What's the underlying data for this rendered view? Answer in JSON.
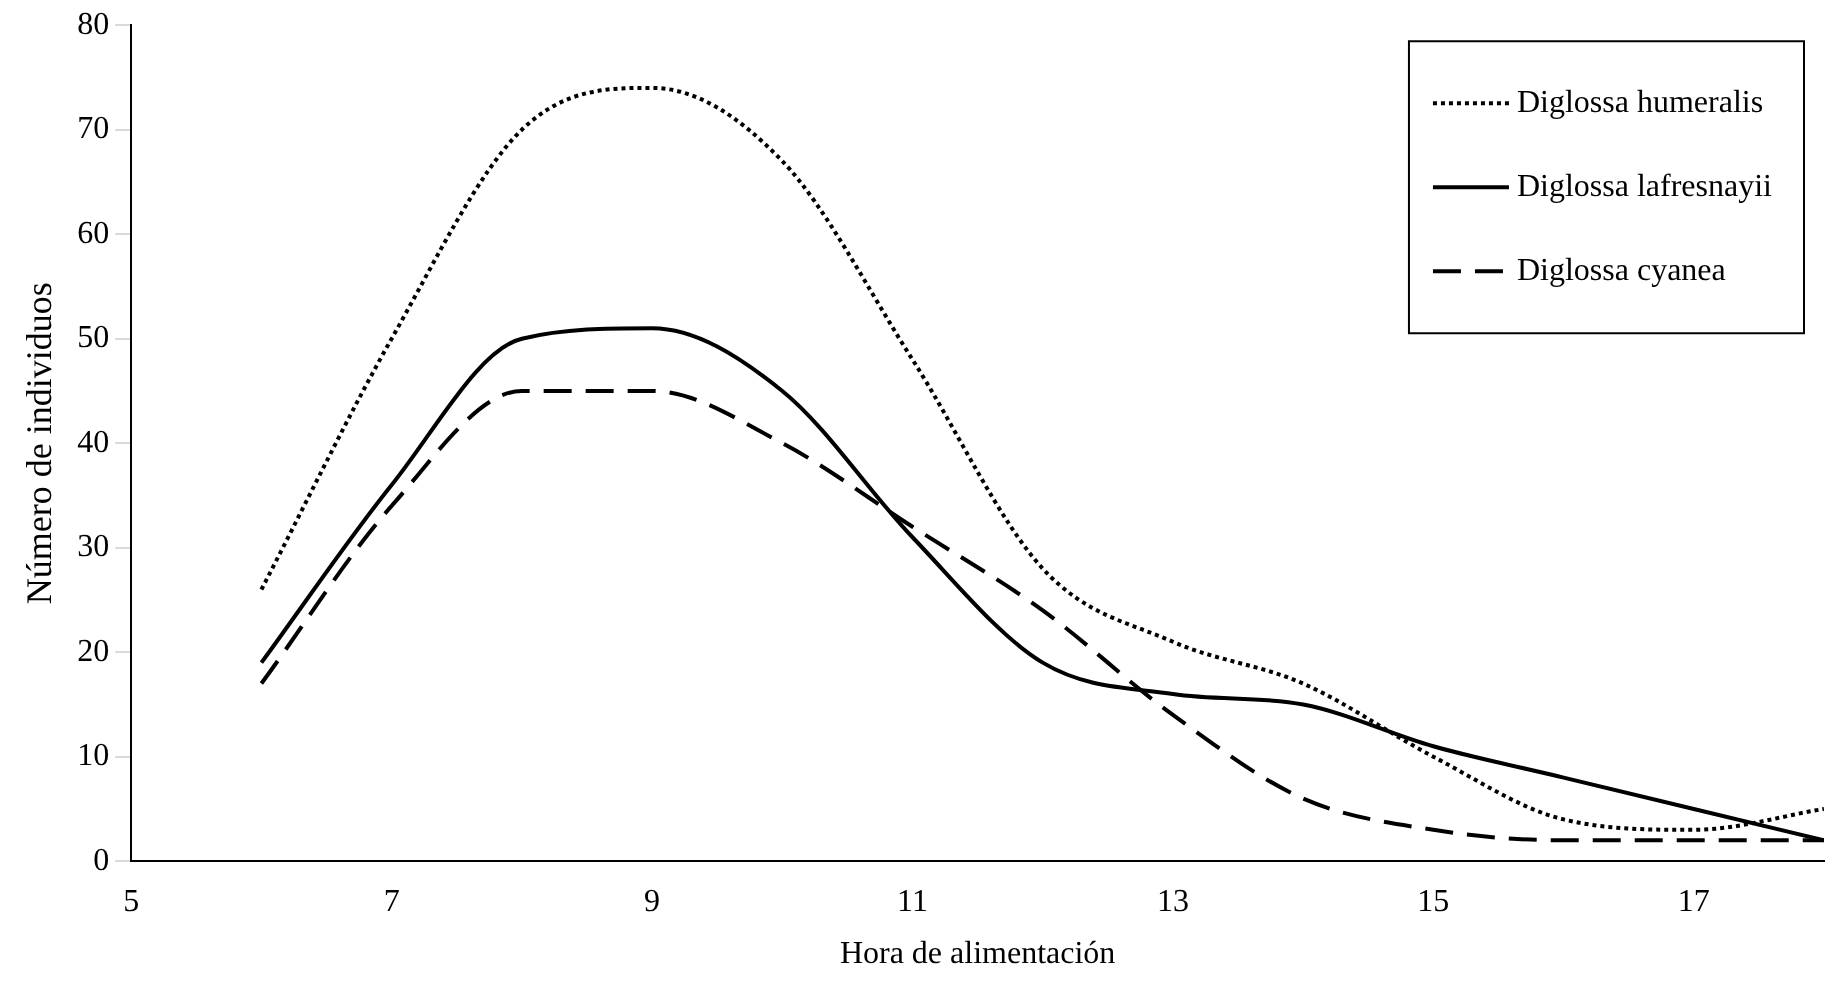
{
  "chart_data": {
    "type": "line",
    "xlabel": "Hora de alimentación",
    "ylabel": "Número de individuos",
    "x": [
      6,
      7,
      8,
      9,
      10,
      11,
      12,
      13,
      14,
      15,
      16,
      17,
      18
    ],
    "series": [
      {
        "name": "Diglossa humeralis",
        "color": "#000000",
        "line_style": "dotted",
        "values": [
          26,
          50,
          70,
          74,
          67,
          48,
          28,
          21,
          17,
          10,
          4,
          3,
          5
        ]
      },
      {
        "name": "Diglossa lafresnayii",
        "color": "#000000",
        "line_style": "solid",
        "values": [
          19,
          36,
          50,
          51,
          45,
          31,
          19,
          16,
          15,
          11,
          8,
          5,
          2
        ]
      },
      {
        "name": "Diglossa cyanea",
        "color": "#000000",
        "line_style": "dashed",
        "values": [
          17,
          34,
          45,
          45,
          40,
          32,
          24,
          14,
          6,
          3,
          2,
          2,
          2
        ]
      }
    ],
    "xlim": [
      5,
      18
    ],
    "xticks": [
      5,
      7,
      9,
      11,
      13,
      15,
      17
    ],
    "ylim": [
      0,
      80
    ],
    "yticks": [
      0,
      10,
      20,
      30,
      40,
      50,
      60,
      70,
      80
    ],
    "grid": false,
    "legend": "top right",
    "marker": "none"
  }
}
